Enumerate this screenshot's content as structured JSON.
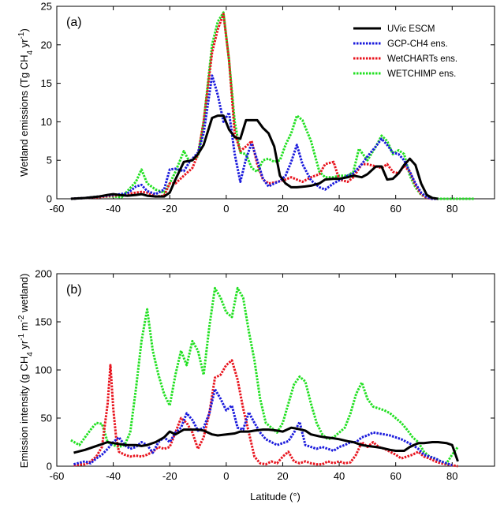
{
  "chart_data": [
    {
      "type": "line",
      "panel_label": "(a)",
      "title": "",
      "xlabel": "",
      "ylabel": "Wetland emissions (Tg CH4 yr-1)",
      "ylabel_parts": {
        "pre": "Wetland emissions (Tg CH",
        "sub": "4",
        "mid": " yr",
        "sup": "-1",
        "post": ")"
      },
      "xlim": [
        -60,
        95
      ],
      "ylim": [
        0,
        25
      ],
      "xticks": [
        -60,
        -40,
        -20,
        0,
        20,
        40,
        60,
        80
      ],
      "yticks": [
        0,
        5,
        10,
        15,
        20,
        25
      ],
      "legend_position": "top-right",
      "series": [
        {
          "name": "UVic ESCM",
          "color": "#000000",
          "dashed": false,
          "x": [
            -55,
            -50,
            -45,
            -42,
            -40,
            -38,
            -35,
            -32,
            -30,
            -28,
            -25,
            -22,
            -20,
            -18,
            -15,
            -12,
            -10,
            -8,
            -5,
            -3,
            -1,
            1,
            3,
            5,
            7,
            9,
            11,
            13,
            15,
            17,
            19,
            21,
            23,
            25,
            28,
            30,
            33,
            35,
            38,
            40,
            43,
            45,
            48,
            50,
            53,
            55,
            57,
            59,
            61,
            63,
            65,
            67,
            69,
            71,
            73,
            75
          ],
          "y": [
            0,
            0.1,
            0.3,
            0.5,
            0.6,
            0.5,
            0.4,
            0.5,
            0.6,
            0.4,
            0.3,
            0.3,
            0.8,
            2.5,
            4.8,
            5.0,
            5.8,
            7.0,
            10.5,
            10.8,
            10.8,
            9.0,
            8.0,
            7.8,
            10.2,
            10.2,
            10.2,
            9.2,
            8.5,
            6.8,
            3.0,
            2.0,
            1.5,
            1.5,
            1.6,
            1.7,
            2.0,
            2.5,
            2.6,
            2.6,
            2.8,
            3.0,
            2.8,
            3.2,
            4.2,
            4.2,
            2.5,
            2.6,
            3.3,
            4.4,
            5.2,
            4.4,
            2.0,
            0.5,
            0.1,
            0
          ]
        },
        {
          "name": "GCP-CH4 ens.",
          "color": "#1a1adc",
          "dashed": true,
          "x": [
            -55,
            -50,
            -45,
            -40,
            -35,
            -32,
            -30,
            -28,
            -25,
            -22,
            -20,
            -18,
            -15,
            -13,
            -10,
            -8,
            -5,
            -3,
            -1,
            1,
            3,
            5,
            7,
            9,
            11,
            13,
            15,
            17,
            19,
            21,
            23,
            25,
            27,
            30,
            33,
            35,
            38,
            40,
            43,
            45,
            48,
            50,
            53,
            55,
            57,
            59,
            61,
            63,
            65,
            67,
            69,
            71,
            73,
            75
          ],
          "y": [
            0,
            0.1,
            0.3,
            0.5,
            0.7,
            1.6,
            1.8,
            1.0,
            0.6,
            1.2,
            3.8,
            3.9,
            3.6,
            4.8,
            6.0,
            8.5,
            16.0,
            13.5,
            10.0,
            11.2,
            5.8,
            2.2,
            5.2,
            7.2,
            5.0,
            2.6,
            1.6,
            2.0,
            2.3,
            3.0,
            4.8,
            7.0,
            4.5,
            2.4,
            1.5,
            1.2,
            2.0,
            2.4,
            3.0,
            3.3,
            4.5,
            5.5,
            6.8,
            7.8,
            7.0,
            6.0,
            5.8,
            5.0,
            3.5,
            2.0,
            0.8,
            0.2,
            0,
            0
          ]
        },
        {
          "name": "WetCHARTs ens.",
          "color": "#e8141e",
          "dashed": true,
          "x": [
            -55,
            -50,
            -45,
            -40,
            -35,
            -32,
            -30,
            -28,
            -25,
            -22,
            -20,
            -18,
            -15,
            -12,
            -10,
            -8,
            -5,
            -3,
            -1,
            1,
            3,
            5,
            7,
            9,
            11,
            13,
            15,
            17,
            19,
            21,
            23,
            25,
            27,
            30,
            33,
            35,
            38,
            40,
            43,
            45,
            48,
            50,
            53,
            55,
            57,
            59,
            61,
            63,
            65,
            67,
            69,
            71,
            73,
            75
          ],
          "y": [
            0,
            0.1,
            0.2,
            0.4,
            0.6,
            0.8,
            0.9,
            0.8,
            0.3,
            0.4,
            2.0,
            2.0,
            3.0,
            4.0,
            5.8,
            10.0,
            19.0,
            22.0,
            24.0,
            18.0,
            8.5,
            6.2,
            6.8,
            7.5,
            4.5,
            2.5,
            2.0,
            2.1,
            2.3,
            2.5,
            2.8,
            2.5,
            2.2,
            2.8,
            3.2,
            4.5,
            4.8,
            2.5,
            2.2,
            2.8,
            4.5,
            4.5,
            4.2,
            4.0,
            4.5,
            3.5,
            3.3,
            4.3,
            3.5,
            1.8,
            0.6,
            0.1,
            0,
            0
          ]
        },
        {
          "name": "WETCHIMP ens.",
          "color": "#22e022",
          "dashed": true,
          "x": [
            -55,
            -50,
            -45,
            -40,
            -37,
            -35,
            -32,
            -30,
            -28,
            -25,
            -22,
            -20,
            -18,
            -15,
            -13,
            -10,
            -8,
            -5,
            -3,
            -1,
            1,
            3,
            5,
            7,
            9,
            11,
            13,
            15,
            17,
            19,
            21,
            23,
            25,
            27,
            30,
            33,
            35,
            38,
            40,
            43,
            45,
            47,
            50,
            53,
            55,
            57,
            59,
            61,
            63,
            65,
            67,
            69,
            71,
            73,
            75,
            80,
            88
          ],
          "y": [
            0,
            0.1,
            0.3,
            0.3,
            0.2,
            1.0,
            2.2,
            3.8,
            2.0,
            1.2,
            0.8,
            2.0,
            3.5,
            6.2,
            4.8,
            5.5,
            10.0,
            20.0,
            23.0,
            24.2,
            18.0,
            10.0,
            6.0,
            5.8,
            4.0,
            3.5,
            5.0,
            5.2,
            4.8,
            5.0,
            7.0,
            8.5,
            10.8,
            10.2,
            7.5,
            3.5,
            2.8,
            2.8,
            3.0,
            3.0,
            3.5,
            6.5,
            5.0,
            6.8,
            8.2,
            7.5,
            5.8,
            6.3,
            5.8,
            3.0,
            1.5,
            0.5,
            0.2,
            0.1,
            0,
            0,
            0
          ]
        }
      ],
      "legend": [
        "UVic ESCM",
        "GCP-CH4 ens.",
        "WetCHARTs ens.",
        "WETCHIMP ens."
      ]
    },
    {
      "type": "line",
      "panel_label": "(b)",
      "title": "",
      "xlabel": "Latitude (°)",
      "ylabel": "Emission intensity (g CH4 yr-1 m-2 wetland)",
      "ylabel_parts": {
        "pre": "Emission intensity (g CH",
        "sub": "4",
        "mid": " yr",
        "sup": "-1",
        "mid2": " m",
        "sup2": "-2",
        "post": " wetland)"
      },
      "xlim": [
        -60,
        95
      ],
      "ylim": [
        0,
        200
      ],
      "xticks": [
        -60,
        -40,
        -20,
        0,
        20,
        40,
        60,
        80
      ],
      "yticks": [
        0,
        50,
        100,
        150,
        200
      ],
      "series": [
        {
          "name": "UVic ESCM",
          "color": "#000000",
          "dashed": false,
          "x": [
            -54,
            -50,
            -45,
            -42,
            -40,
            -38,
            -35,
            -32,
            -30,
            -28,
            -25,
            -22,
            -20,
            -18,
            -15,
            -12,
            -10,
            -8,
            -5,
            -3,
            0,
            3,
            5,
            8,
            10,
            13,
            15,
            18,
            20,
            23,
            25,
            28,
            30,
            33,
            35,
            38,
            40,
            43,
            45,
            48,
            50,
            53,
            55,
            58,
            60,
            63,
            65,
            68,
            70,
            73,
            75,
            78,
            80,
            82
          ],
          "y": [
            14,
            17,
            22,
            25,
            24,
            23,
            22,
            22,
            21,
            22,
            25,
            30,
            36,
            33,
            38,
            38,
            38,
            37,
            33,
            32,
            33,
            34,
            36,
            36,
            37,
            38,
            38,
            37,
            36,
            40,
            39,
            37,
            33,
            31,
            30,
            29,
            28,
            26,
            25,
            22,
            21,
            20,
            19,
            17,
            16,
            16,
            20,
            24,
            24,
            25,
            25,
            24,
            22,
            5
          ]
        },
        {
          "name": "GCP-CH4 ens.",
          "color": "#1a1adc",
          "dashed": true,
          "x": [
            -54,
            -50,
            -48,
            -46,
            -44,
            -42,
            -40,
            -38,
            -36,
            -34,
            -32,
            -30,
            -28,
            -26,
            -24,
            -22,
            -20,
            -18,
            -16,
            -14,
            -12,
            -10,
            -8,
            -6,
            -4,
            -2,
            0,
            2,
            4,
            6,
            8,
            10,
            12,
            14,
            16,
            18,
            20,
            22,
            24,
            26,
            28,
            30,
            32,
            34,
            36,
            38,
            40,
            42,
            44,
            46,
            48,
            50,
            52,
            54,
            56,
            58,
            60,
            62,
            64,
            66,
            68,
            70,
            72,
            74,
            76,
            78,
            80
          ],
          "y": [
            2,
            5,
            3,
            8,
            12,
            18,
            25,
            30,
            22,
            18,
            20,
            25,
            22,
            14,
            25,
            30,
            25,
            35,
            40,
            55,
            48,
            37,
            40,
            55,
            80,
            70,
            58,
            63,
            40,
            38,
            56,
            45,
            35,
            28,
            25,
            22,
            24,
            26,
            35,
            46,
            22,
            20,
            18,
            20,
            18,
            16,
            20,
            22,
            25,
            25,
            30,
            32,
            35,
            34,
            33,
            32,
            30,
            28,
            25,
            22,
            18,
            12,
            10,
            8,
            5,
            3,
            1
          ]
        },
        {
          "name": "WetCHARTs ens.",
          "color": "#e8141e",
          "dashed": true,
          "x": [
            -54,
            -50,
            -48,
            -46,
            -44,
            -42,
            -41,
            -40,
            -39,
            -38,
            -36,
            -34,
            -32,
            -30,
            -28,
            -26,
            -24,
            -22,
            -20,
            -18,
            -16,
            -14,
            -12,
            -10,
            -8,
            -6,
            -4,
            -2,
            0,
            2,
            4,
            6,
            8,
            10,
            12,
            14,
            16,
            18,
            20,
            22,
            24,
            26,
            28,
            30,
            32,
            34,
            36,
            38,
            40,
            42,
            44,
            46,
            48,
            50,
            52,
            54,
            56,
            58,
            60,
            62,
            64,
            66,
            68,
            70,
            72,
            74,
            76,
            78,
            80,
            82
          ],
          "y": [
            1,
            2,
            5,
            10,
            20,
            65,
            105,
            60,
            30,
            15,
            12,
            10,
            11,
            10,
            12,
            15,
            20,
            18,
            20,
            35,
            50,
            45,
            35,
            18,
            30,
            55,
            92,
            95,
            105,
            110,
            90,
            60,
            35,
            10,
            3,
            2,
            5,
            3,
            10,
            15,
            5,
            3,
            5,
            3,
            2,
            2,
            5,
            3,
            5,
            3,
            4,
            12,
            25,
            20,
            25,
            20,
            18,
            15,
            12,
            8,
            10,
            12,
            15,
            10,
            8,
            5,
            3,
            2,
            1,
            0
          ]
        },
        {
          "name": "WETCHIMP ens.",
          "color": "#22e022",
          "dashed": true,
          "x": [
            -55,
            -52,
            -50,
            -48,
            -46,
            -44,
            -42,
            -40,
            -38,
            -36,
            -34,
            -32,
            -30,
            -28,
            -26,
            -24,
            -22,
            -20,
            -18,
            -16,
            -14,
            -12,
            -10,
            -8,
            -6,
            -4,
            -2,
            0,
            2,
            4,
            6,
            8,
            10,
            12,
            14,
            16,
            18,
            20,
            22,
            24,
            26,
            28,
            30,
            32,
            34,
            36,
            38,
            40,
            42,
            44,
            46,
            48,
            50,
            52,
            54,
            56,
            58,
            60,
            62,
            64,
            66,
            68,
            70,
            72,
            74,
            76,
            78,
            80,
            82
          ],
          "y": [
            27,
            22,
            30,
            38,
            45,
            44,
            25,
            22,
            20,
            22,
            35,
            80,
            130,
            163,
            120,
            95,
            75,
            63,
            95,
            120,
            105,
            130,
            120,
            95,
            145,
            185,
            175,
            160,
            155,
            185,
            175,
            140,
            110,
            70,
            45,
            40,
            35,
            45,
            65,
            85,
            93,
            88,
            65,
            45,
            33,
            28,
            30,
            35,
            40,
            55,
            75,
            87,
            70,
            62,
            60,
            58,
            55,
            50,
            45,
            38,
            30,
            25,
            15,
            10,
            8,
            5,
            3,
            12,
            20
          ]
        }
      ]
    }
  ]
}
